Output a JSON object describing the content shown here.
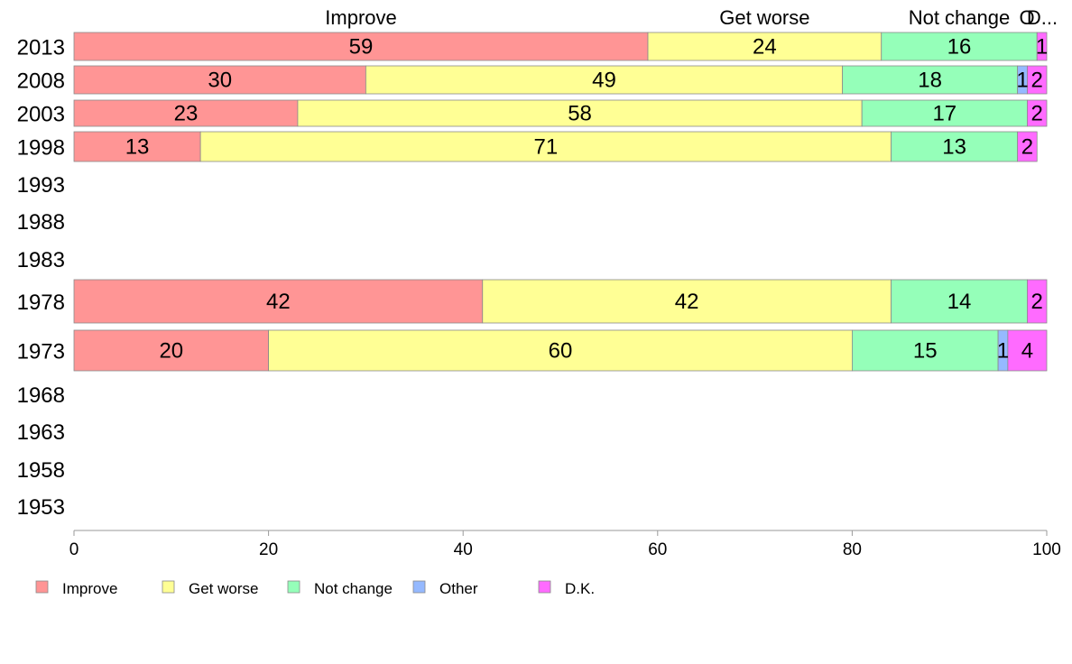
{
  "chart_data": {
    "type": "bar",
    "orientation": "horizontal",
    "stacked": true,
    "categories": [
      "2013",
      "2008",
      "2003",
      "1998",
      "1993",
      "1988",
      "1983",
      "1978",
      "1973",
      "1968",
      "1963",
      "1958",
      "1953"
    ],
    "series": [
      {
        "name": "Improve",
        "color": "#ff9595",
        "values": [
          59,
          30,
          23,
          13,
          null,
          null,
          null,
          42,
          20,
          null,
          null,
          null,
          null
        ]
      },
      {
        "name": "Get worse",
        "color": "#ffff95",
        "values": [
          24,
          49,
          58,
          71,
          null,
          null,
          null,
          42,
          60,
          null,
          null,
          null,
          null
        ]
      },
      {
        "name": "Not change",
        "color": "#95ffb9",
        "values": [
          16,
          18,
          17,
          13,
          null,
          null,
          null,
          14,
          15,
          null,
          null,
          null,
          null
        ]
      },
      {
        "name": "Other",
        "color": "#95b9ff",
        "values": [
          0,
          1,
          0,
          0,
          null,
          null,
          null,
          0,
          1,
          null,
          null,
          null,
          null
        ]
      },
      {
        "name": "D.K.",
        "color": "#ff6bff",
        "values": [
          1,
          2,
          2,
          2,
          null,
          null,
          null,
          2,
          4,
          null,
          null,
          null,
          null
        ]
      }
    ],
    "segment_labels": [
      [
        "59",
        "24",
        "16",
        "",
        "1"
      ],
      [
        "30",
        "49",
        "18",
        "1",
        "2"
      ],
      [
        "23",
        "58",
        "17",
        "",
        "2"
      ],
      [
        "13",
        "71",
        "13",
        "",
        "2"
      ],
      [
        "",
        "",
        "",
        "",
        ""
      ],
      [
        "",
        "",
        "",
        "",
        ""
      ],
      [
        "",
        "",
        "",
        "",
        ""
      ],
      [
        "42",
        "42",
        "14",
        "",
        "2"
      ],
      [
        "20",
        "60",
        "15",
        "1",
        "4"
      ],
      [
        "",
        "",
        "",
        "",
        ""
      ],
      [
        "",
        "",
        "",
        "",
        ""
      ],
      [
        "",
        "",
        "",
        "",
        ""
      ],
      [
        "",
        "",
        "",
        "",
        ""
      ]
    ],
    "top_headers": [
      "Improve",
      "Get worse",
      "Not change",
      "O",
      "D..."
    ],
    "xlim": [
      0,
      100
    ],
    "xticks": [
      "0",
      "20",
      "40",
      "60",
      "80",
      "100"
    ],
    "title": "",
    "xlabel": "",
    "ylabel": "",
    "legend_position": "bottom-left",
    "grid": false
  }
}
